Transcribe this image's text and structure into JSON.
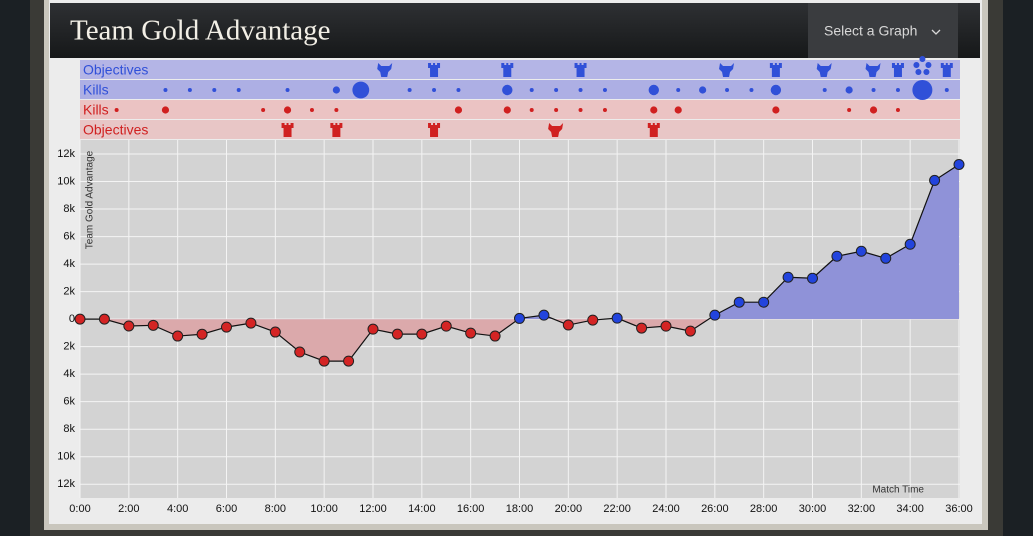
{
  "header": {
    "title": "Team Gold Advantage",
    "select": "Select a Graph"
  },
  "chart_data": {
    "type": "line",
    "y_label": "Team Gold Advantage",
    "x_label": "Match Time",
    "x": [
      0,
      1,
      2,
      3,
      4,
      5,
      6,
      7,
      8,
      9,
      10,
      11,
      12,
      13,
      14,
      15,
      16,
      17,
      18,
      19,
      20,
      21,
      22,
      23,
      24,
      25,
      26,
      27,
      28,
      29,
      30,
      31,
      32,
      33,
      34,
      35,
      36
    ],
    "values": [
      0,
      0,
      -500,
      -450,
      -1230,
      -1100,
      -580,
      -290,
      -940,
      -2390,
      -3050,
      -3050,
      -730,
      -1090,
      -1090,
      -510,
      -1015,
      -1230,
      50,
      290,
      -430,
      -70,
      70,
      -650,
      -510,
      -870,
      290,
      1230,
      1230,
      3045,
      2970,
      4570,
      4930,
      4420,
      5440,
      10080,
      11240
    ],
    "positive_color": "#2244dd",
    "negative_color": "#d42424",
    "positive_fill": "#8f92d8",
    "negative_fill": "#dba9ab",
    "xlim": [
      0,
      36
    ],
    "ylim": [
      -13000,
      12800
    ],
    "grid": true,
    "xticks": [
      {
        "value": 0,
        "label": "0:00"
      },
      {
        "value": 2,
        "label": "2:00"
      },
      {
        "value": 4,
        "label": "4:00"
      },
      {
        "value": 6,
        "label": "6:00"
      },
      {
        "value": 8,
        "label": "8:00"
      },
      {
        "value": 10,
        "label": "10:00"
      },
      {
        "value": 12,
        "label": "12:00"
      },
      {
        "value": 14,
        "label": "14:00"
      },
      {
        "value": 16,
        "label": "16:00"
      },
      {
        "value": 18,
        "label": "18:00"
      },
      {
        "value": 20,
        "label": "20:00"
      },
      {
        "value": 22,
        "label": "22:00"
      },
      {
        "value": 24,
        "label": "24:00"
      },
      {
        "value": 26,
        "label": "26:00"
      },
      {
        "value": 28,
        "label": "28:00"
      },
      {
        "value": 30,
        "label": "30:00"
      },
      {
        "value": 32,
        "label": "32:00"
      },
      {
        "value": 34,
        "label": "34:00"
      },
      {
        "value": 36,
        "label": "36:00"
      }
    ],
    "yticks": [
      {
        "value": 12000,
        "label": "12k"
      },
      {
        "value": 10000,
        "label": "10k"
      },
      {
        "value": 8000,
        "label": "8k"
      },
      {
        "value": 6000,
        "label": "6k"
      },
      {
        "value": 4000,
        "label": "4k"
      },
      {
        "value": 2000,
        "label": "2k"
      },
      0,
      {
        "value": -2000,
        "label": "2k"
      },
      {
        "value": -4000,
        "label": "4k"
      },
      {
        "value": -6000,
        "label": "6k"
      },
      {
        "value": -8000,
        "label": "8k"
      },
      {
        "value": -10000,
        "label": "10k"
      },
      {
        "value": -12000,
        "label": "12k"
      }
    ],
    "tracks": [
      {
        "label": "Objectives",
        "color": "#3050d8",
        "band": "#b4b5e6",
        "times": [
          12.5,
          14.5,
          17.5,
          20.5,
          26.5,
          28.5,
          30.5,
          32.5,
          33.5,
          34.5,
          35.5
        ],
        "icons": [
          "monster",
          "tower",
          "tower",
          "tower",
          "monster",
          "tower",
          "monster",
          "monster",
          "tower",
          "baron",
          "tower"
        ]
      },
      {
        "label": "Kills",
        "color": "#3050d8",
        "band": "#adafe4",
        "times": [
          3.5,
          4.5,
          5.5,
          6.5,
          8.5,
          10.5,
          11.5,
          13.5,
          14.5,
          15.5,
          17.5,
          18.5,
          19.5,
          20.5,
          21.5,
          23.5,
          24.5,
          25.5,
          26.5,
          27.5,
          28.5,
          30.5,
          31.5,
          32.5,
          33.5,
          34.5,
          35.5
        ],
        "counts": [
          1,
          1,
          1,
          1,
          1,
          2,
          5,
          1,
          1,
          1,
          3,
          1,
          1,
          1,
          1,
          3,
          1,
          2,
          1,
          1,
          3,
          1,
          2,
          1,
          1,
          6,
          1
        ]
      },
      {
        "label": "Kills",
        "color": "#d02020",
        "band": "#ebc3c3",
        "times": [
          1.5,
          3.5,
          7.5,
          8.5,
          9.5,
          10.5,
          15.5,
          17.5,
          18.5,
          19.5,
          20.5,
          21.5,
          23.5,
          24.5,
          28.5,
          31.5,
          32.5,
          33.5
        ],
        "counts": [
          1,
          2,
          1,
          2,
          1,
          1,
          2,
          2,
          1,
          1,
          1,
          1,
          2,
          2,
          2,
          1,
          2,
          1
        ]
      },
      {
        "label": "Objectives",
        "color": "#d02020",
        "band": "#e8c6c6",
        "times": [
          8.5,
          10.5,
          14.5,
          19.5,
          23.5
        ],
        "icons": [
          "tower",
          "tower",
          "tower",
          "monster",
          "tower"
        ]
      }
    ]
  }
}
